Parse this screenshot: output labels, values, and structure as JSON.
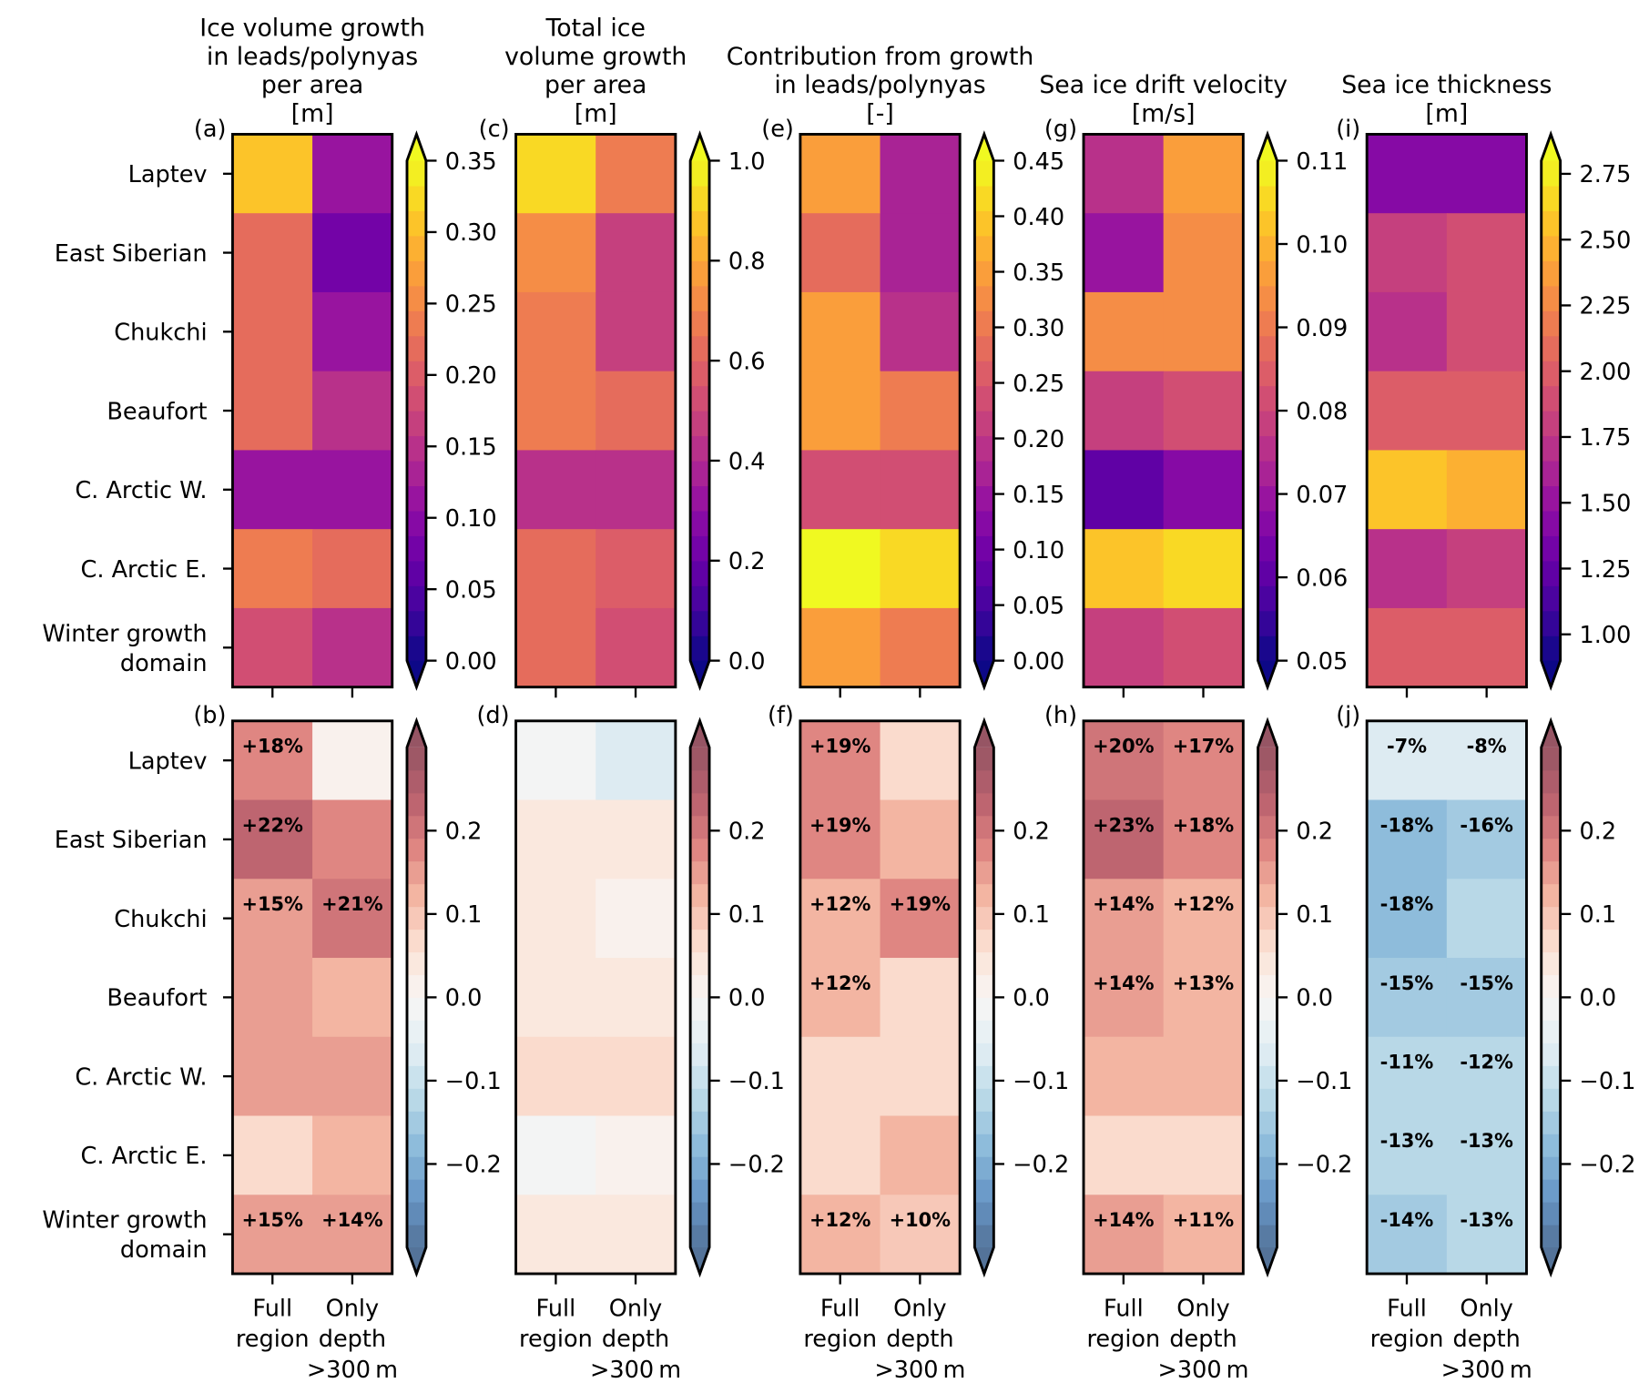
{
  "chart_data": {
    "type": "heatmap",
    "rows": [
      "Laptev",
      "East Siberian",
      "Chukchi",
      "Beaufort",
      "C. Arctic W.",
      "C. Arctic E.",
      "Winter growth domain"
    ],
    "row_labels": [
      [
        "Laptev"
      ],
      [
        "East Siberian"
      ],
      [
        "Chukchi"
      ],
      [
        "Beaufort"
      ],
      [
        "C. Arctic W."
      ],
      [
        "C. Arctic E."
      ],
      [
        "Winter growth",
        "domain"
      ]
    ],
    "columns": [
      "Full region",
      "Only depth >300m"
    ],
    "column_labels": [
      [
        "Full",
        "region"
      ],
      [
        "Only",
        "depth",
        ">300 m"
      ]
    ],
    "panels": [
      {
        "title": [
          "Ice volume growth",
          "in leads/polynyas",
          "per area",
          "[m]"
        ],
        "top": {
          "label": "(a)",
          "colormap": "plasma",
          "vmin": 0.0,
          "vmax": 0.35,
          "ticks": [
            0.0,
            0.05,
            0.1,
            0.15,
            0.2,
            0.25,
            0.3,
            0.35
          ],
          "tick_labels": [
            "0.00",
            "0.05",
            "0.10",
            "0.15",
            "0.20",
            "0.25",
            "0.30",
            "0.35"
          ],
          "values": [
            [
              0.31,
              0.11
            ],
            [
              0.21,
              0.085
            ],
            [
              0.21,
              0.12
            ],
            [
              0.21,
              0.155
            ],
            [
              0.115,
              0.115
            ],
            [
              0.24,
              0.21
            ],
            [
              0.19,
              0.14
            ]
          ]
        },
        "bottom": {
          "label": "(b)",
          "colormap": "RdBu_r",
          "vmin": -0.3,
          "vmax": 0.3,
          "ticks": [
            -0.2,
            -0.1,
            0.0,
            0.1,
            0.2
          ],
          "tick_labels": [
            "−0.2",
            "−0.1",
            "0.0",
            "0.1",
            "0.2"
          ],
          "values": [
            [
              0.18,
              0.01
            ],
            [
              0.22,
              0.18
            ],
            [
              0.15,
              0.21
            ],
            [
              0.15,
              0.12
            ],
            [
              0.15,
              0.15
            ],
            [
              0.07,
              0.12
            ],
            [
              0.15,
              0.14
            ]
          ],
          "annotations": [
            [
              "+18%",
              ""
            ],
            [
              "+22%",
              ""
            ],
            [
              "+15%",
              "+21%"
            ],
            [
              "",
              ""
            ],
            [
              "",
              ""
            ],
            [
              "",
              ""
            ],
            [
              "+15%",
              "+14%"
            ]
          ]
        }
      },
      {
        "title": [
          "Total ice",
          "volume growth",
          "per area",
          "[m]"
        ],
        "top": {
          "label": "(c)",
          "colormap": "plasma",
          "vmin": 0.0,
          "vmax": 1.0,
          "ticks": [
            0.0,
            0.2,
            0.4,
            0.6,
            0.8,
            1.0
          ],
          "tick_labels": [
            "0.0",
            "0.2",
            "0.4",
            "0.6",
            "0.8",
            "1.0"
          ],
          "values": [
            [
              0.93,
              0.66
            ],
            [
              0.7,
              0.47
            ],
            [
              0.66,
              0.47
            ],
            [
              0.66,
              0.6
            ],
            [
              0.42,
              0.42
            ],
            [
              0.6,
              0.55
            ],
            [
              0.6,
              0.5
            ]
          ]
        },
        "bottom": {
          "label": "(d)",
          "colormap": "RdBu_r",
          "vmin": -0.3,
          "vmax": 0.3,
          "ticks": [
            -0.2,
            -0.1,
            0.0,
            0.1,
            0.2
          ],
          "tick_labels": [
            "−0.2",
            "−0.1",
            "0.0",
            "0.1",
            "0.2"
          ],
          "values": [
            [
              -0.02,
              -0.06
            ],
            [
              0.04,
              0.04
            ],
            [
              0.04,
              0.01
            ],
            [
              0.04,
              0.04
            ],
            [
              0.06,
              0.06
            ],
            [
              -0.02,
              0.01
            ],
            [
              0.04,
              0.04
            ]
          ],
          "annotations": [
            [
              "",
              ""
            ],
            [
              "",
              ""
            ],
            [
              "",
              ""
            ],
            [
              "",
              ""
            ],
            [
              "",
              ""
            ],
            [
              "",
              ""
            ],
            [
              "",
              ""
            ]
          ]
        }
      },
      {
        "title": [
          "Contribution from growth",
          "in leads/polynyas",
          "[-]"
        ],
        "top": {
          "label": "(e)",
          "colormap": "plasma",
          "vmin": 0.0,
          "vmax": 0.45,
          "ticks": [
            0.0,
            0.05,
            0.1,
            0.15,
            0.2,
            0.25,
            0.3,
            0.35,
            0.4,
            0.45
          ],
          "tick_labels": [
            "0.00",
            "0.05",
            "0.10",
            "0.15",
            "0.20",
            "0.25",
            "0.30",
            "0.35",
            "0.40",
            "0.45"
          ],
          "values": [
            [
              0.34,
              0.16
            ],
            [
              0.29,
              0.18
            ],
            [
              0.34,
              0.2
            ],
            [
              0.34,
              0.3
            ],
            [
              0.23,
              0.23
            ],
            [
              0.45,
              0.41
            ],
            [
              0.34,
              0.3
            ]
          ]
        },
        "bottom": {
          "label": "(f)",
          "colormap": "RdBu_r",
          "vmin": -0.3,
          "vmax": 0.3,
          "ticks": [
            -0.2,
            -0.1,
            0.0,
            0.1,
            0.2
          ],
          "tick_labels": [
            "−0.2",
            "−0.1",
            "0.0",
            "0.1",
            "0.2"
          ],
          "values": [
            [
              0.19,
              0.07
            ],
            [
              0.19,
              0.12
            ],
            [
              0.12,
              0.19
            ],
            [
              0.12,
              0.07
            ],
            [
              0.07,
              0.07
            ],
            [
              0.07,
              0.12
            ],
            [
              0.12,
              0.1
            ]
          ],
          "annotations": [
            [
              "+19%",
              ""
            ],
            [
              "+19%",
              ""
            ],
            [
              "+12%",
              "+19%"
            ],
            [
              "+12%",
              ""
            ],
            [
              "",
              ""
            ],
            [
              "",
              ""
            ],
            [
              "+12%",
              "+10%"
            ]
          ]
        }
      },
      {
        "title": [
          "Sea ice drift velocity",
          "[m/s]"
        ],
        "top": {
          "label": "(g)",
          "colormap": "plasma",
          "vmin": 0.05,
          "vmax": 0.11,
          "ticks": [
            0.05,
            0.06,
            0.07,
            0.08,
            0.09,
            0.1,
            0.11
          ],
          "tick_labels": [
            "0.05",
            "0.06",
            "0.07",
            "0.08",
            "0.09",
            "0.10",
            "0.11"
          ],
          "values": [
            [
              0.075,
              0.095
            ],
            [
              0.071,
              0.092
            ],
            [
              0.094,
              0.092
            ],
            [
              0.078,
              0.08
            ],
            [
              0.062,
              0.065
            ],
            [
              0.103,
              0.106
            ],
            [
              0.079,
              0.082
            ]
          ]
        },
        "bottom": {
          "label": "(h)",
          "colormap": "RdBu_r",
          "vmin": -0.3,
          "vmax": 0.3,
          "ticks": [
            -0.2,
            -0.1,
            0.0,
            0.1,
            0.2
          ],
          "tick_labels": [
            "−0.2",
            "−0.1",
            "0.0",
            "0.1",
            "0.2"
          ],
          "values": [
            [
              0.2,
              0.17
            ],
            [
              0.23,
              0.18
            ],
            [
              0.14,
              0.12
            ],
            [
              0.14,
              0.13
            ],
            [
              0.12,
              0.12
            ],
            [
              0.07,
              0.07
            ],
            [
              0.14,
              0.11
            ]
          ],
          "annotations": [
            [
              "+20%",
              "+17%"
            ],
            [
              "+23%",
              "+18%"
            ],
            [
              "+14%",
              "+12%"
            ],
            [
              "+14%",
              "+13%"
            ],
            [
              "",
              ""
            ],
            [
              "",
              ""
            ],
            [
              "+14%",
              "+11%"
            ]
          ]
        }
      },
      {
        "title": [
          "Sea ice thickness",
          "[m]"
        ],
        "top": {
          "label": "(i)",
          "colormap": "plasma",
          "vmin": 0.9,
          "vmax": 2.8,
          "ticks": [
            1.0,
            1.25,
            1.5,
            1.75,
            2.0,
            2.25,
            2.5,
            2.75
          ],
          "tick_labels": [
            "1.00",
            "1.25",
            "1.50",
            "1.75",
            "2.00",
            "2.25",
            "2.50",
            "2.75"
          ],
          "values": [
            [
              1.38,
              1.45
            ],
            [
              1.78,
              1.85
            ],
            [
              1.72,
              1.85
            ],
            [
              1.95,
              2.02
            ],
            [
              2.58,
              2.5
            ],
            [
              1.72,
              1.78
            ],
            [
              1.95,
              2.02
            ]
          ]
        },
        "bottom": {
          "label": "(j)",
          "colormap": "RdBu_r",
          "vmin": -0.3,
          "vmax": 0.3,
          "ticks": [
            -0.2,
            -0.1,
            0.0,
            0.1,
            0.2
          ],
          "tick_labels": [
            "−0.2",
            "−0.1",
            "0.0",
            "0.1",
            "0.2"
          ],
          "values": [
            [
              -0.07,
              -0.08
            ],
            [
              -0.18,
              -0.16
            ],
            [
              -0.18,
              -0.12
            ],
            [
              -0.15,
              -0.15
            ],
            [
              -0.11,
              -0.12
            ],
            [
              -0.13,
              -0.13
            ],
            [
              -0.14,
              -0.13
            ]
          ],
          "annotations": [
            [
              "-7%",
              "-8%"
            ],
            [
              "-18%",
              "-16%"
            ],
            [
              "-18%",
              ""
            ],
            [
              "-15%",
              "-15%"
            ],
            [
              "-11%",
              "-12%"
            ],
            [
              "-13%",
              "-13%"
            ],
            [
              "-14%",
              "-13%"
            ]
          ]
        }
      }
    ]
  }
}
